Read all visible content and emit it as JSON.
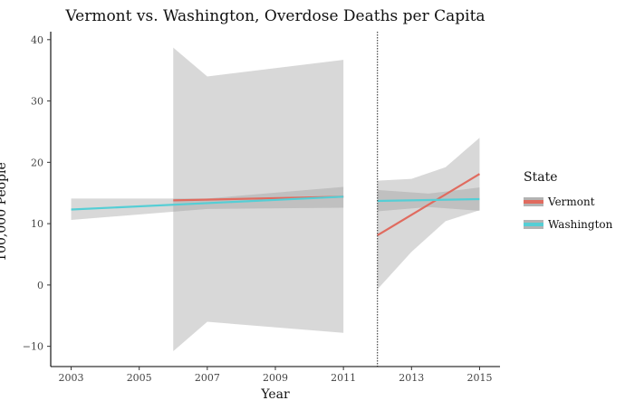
{
  "chart_data": {
    "type": "line",
    "title": "Vermont vs. Washington, Overdose Deaths per Capita",
    "xlabel": "Year",
    "ylabel": "Deaths Per 100,000 People",
    "xlim": [
      2002.4,
      2015.6
    ],
    "ylim": [
      -13.3,
      41.3
    ],
    "x_ticks": [
      2003,
      2005,
      2007,
      2009,
      2011,
      2013,
      2015
    ],
    "y_ticks": [
      -10,
      0,
      10,
      20,
      30,
      40
    ],
    "y_tick_labels": [
      "−10",
      "0",
      "10",
      "20",
      "30",
      "40"
    ],
    "vline_x": 2012,
    "grid": false,
    "legend": {
      "title": "State",
      "position": "right"
    },
    "series": [
      {
        "name": "Vermont",
        "color": "#e06b5f",
        "segments": [
          {
            "x": [
              2006,
              2011
            ],
            "y": [
              13.8,
              14.4
            ],
            "band_x": [
              2006,
              2007,
              2011
            ],
            "band_lower": [
              -10.8,
              -6.0,
              -7.8
            ],
            "band_upper": [
              38.7,
              34.0,
              36.7
            ]
          },
          {
            "x": [
              2012,
              2015
            ],
            "y": [
              8.1,
              18.1
            ],
            "band_x": [
              2012,
              2013,
              2014,
              2015
            ],
            "band_lower": [
              -0.7,
              5.4,
              10.4,
              12.2
            ],
            "band_upper": [
              17.0,
              17.3,
              19.2,
              24.0
            ]
          }
        ]
      },
      {
        "name": "Washington",
        "color": "#55ced5",
        "segments": [
          {
            "x": [
              2003,
              2011
            ],
            "y": [
              12.3,
              14.4
            ],
            "band_x": [
              2003,
              2007,
              2011
            ],
            "band_lower": [
              10.6,
              12.4,
              12.6
            ],
            "band_upper": [
              14.1,
              14.1,
              16.0
            ]
          },
          {
            "x": [
              2012,
              2015
            ],
            "y": [
              13.7,
              14.0
            ],
            "band_x": [
              2012,
              2013.5,
              2015
            ],
            "band_lower": [
              12.0,
              12.7,
              12.1
            ],
            "band_upper": [
              15.5,
              14.9,
              15.9
            ]
          }
        ]
      }
    ]
  }
}
